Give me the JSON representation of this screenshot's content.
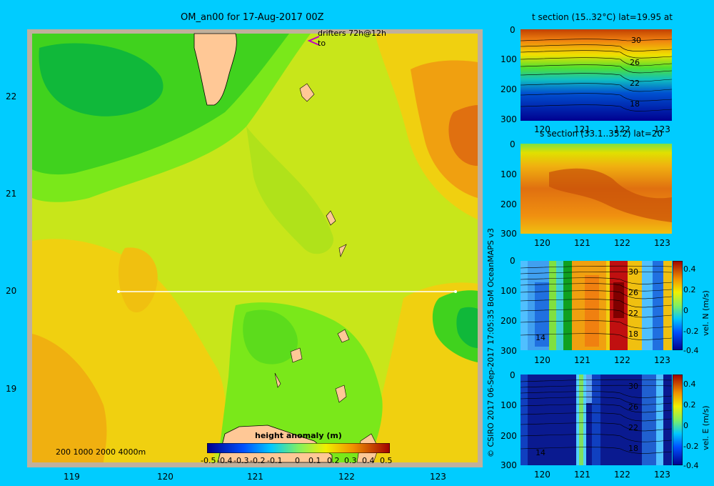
{
  "map": {
    "title": "OM_an00 for 17-Aug-2017 00Z",
    "drifters_label": "drifters 72h@12h",
    "drifters_sub": "to",
    "lat_ticks": [
      "22",
      "21",
      "20",
      "19"
    ],
    "lon_ticks": [
      "119",
      "120",
      "121",
      "122",
      "123"
    ],
    "depth_legend": "200 1000 2000 4000m",
    "colorbar_title": "height anomaly (m)",
    "colorbar_ticks": [
      "-0.5",
      "-0.4",
      "-0.3",
      "-0.2",
      "-0.1",
      "0",
      "0.1",
      "0.2",
      "0.3",
      "0.4",
      "0.5"
    ],
    "credit": "© CSIRO 2017   06-Sep-2017 17:05:35 BoM OceanMAPS v3"
  },
  "sections": [
    {
      "title": "t section (15..32°C) lat=19.95 at",
      "y_ticks": [
        "0",
        "100",
        "200",
        "300"
      ],
      "x_ticks": [
        "120",
        "121",
        "122",
        "123"
      ],
      "contour_labels": [
        "30",
        "26",
        "22",
        "18"
      ]
    },
    {
      "title": "s section (33.1..35.2) lat=20",
      "y_ticks": [
        "0",
        "100",
        "200",
        "300"
      ],
      "x_ticks": [
        "120",
        "121",
        "122",
        "123"
      ]
    },
    {
      "y_ticks": [
        "0",
        "100",
        "200",
        "300"
      ],
      "x_ticks": [
        "120",
        "121",
        "122",
        "123"
      ],
      "contour_labels": [
        "30",
        "26",
        "22",
        "18",
        "14"
      ],
      "colorbar_ticks": [
        "0.4",
        "0.2",
        "0",
        "-0.2",
        "-0.4"
      ],
      "colorbar_label": "vel. N (m/s)"
    },
    {
      "y_ticks": [
        "0",
        "100",
        "200",
        "300"
      ],
      "x_ticks": [
        "120",
        "121",
        "122",
        "123"
      ],
      "contour_labels": [
        "30",
        "26",
        "22",
        "18",
        "14"
      ],
      "colorbar_ticks": [
        "0.4",
        "0.2",
        "0",
        "-0.2",
        "-0.4"
      ],
      "colorbar_label": "vel. E (m/s)"
    }
  ]
}
